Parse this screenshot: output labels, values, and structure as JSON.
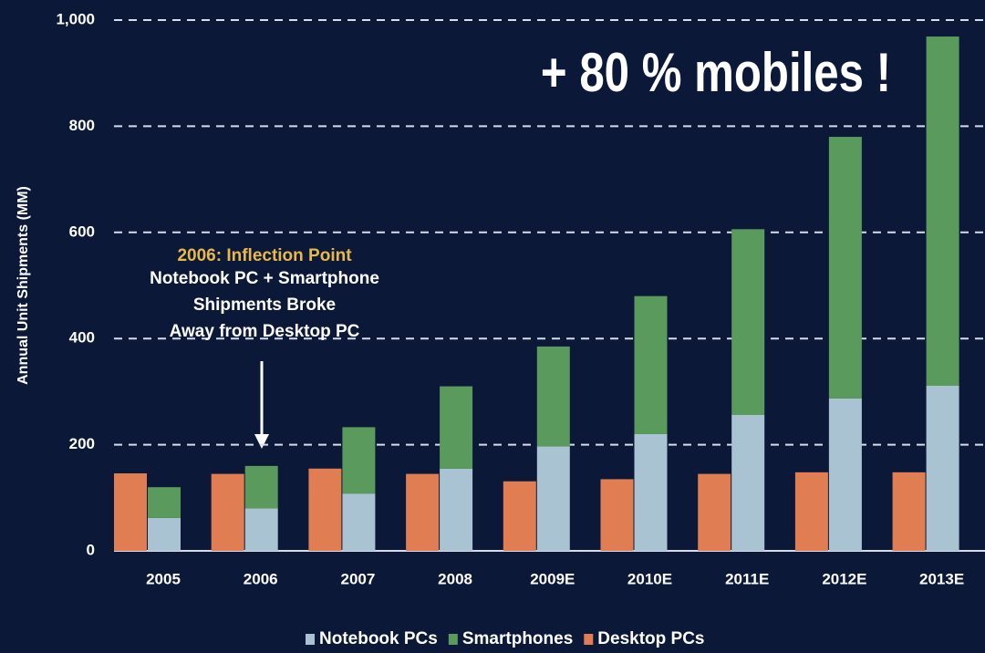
{
  "chart_data": {
    "type": "bar",
    "y_label": "Annual Unit Shipments (MM)",
    "categories": [
      "2005",
      "2006",
      "2007",
      "2008",
      "2009E",
      "2010E",
      "2011E",
      "2012E",
      "2013E"
    ],
    "series": [
      {
        "name": "Notebook PCs",
        "color": "#a9c3d3",
        "stack": "mobile",
        "values": [
          62,
          80,
          108,
          155,
          197,
          220,
          256,
          287,
          311
        ]
      },
      {
        "name": "Smartphones",
        "color": "#5a9a5c",
        "stack": "mobile",
        "values": [
          58,
          80,
          125,
          155,
          188,
          260,
          350,
          493,
          658
        ]
      },
      {
        "name": "Desktop PCs",
        "color": "#e07d52",
        "stack": "desktop",
        "values": [
          146,
          145,
          155,
          145,
          131,
          135,
          145,
          148,
          148
        ]
      }
    ],
    "ylim": [
      0,
      1000
    ],
    "yticks": [
      0,
      200,
      400,
      600,
      800,
      {
        "value": 1000,
        "label": "1,000"
      }
    ],
    "grid": true,
    "annotations": {
      "headline": "+ 80 % mobiles !",
      "inflection_title": "2006: Inflection Point",
      "inflection_lines": [
        "Notebook PC + Smartphone",
        "Shipments Broke",
        "Away from Desktop PC"
      ]
    }
  }
}
